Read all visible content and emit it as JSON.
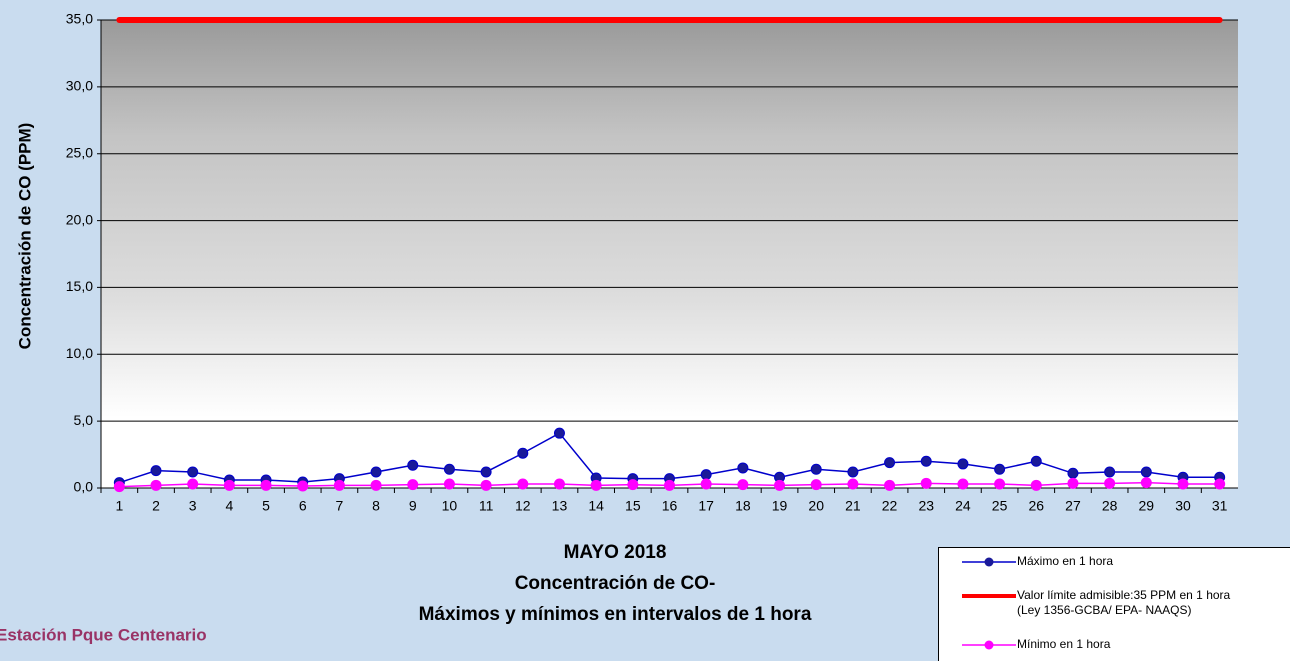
{
  "chart_data": {
    "type": "line",
    "title_lines": [
      "MAYO 2018",
      "Concentración de CO-",
      "Máximos y mínimos en intervalos de 1 hora"
    ],
    "y_label": "Concentración de CO (PPM)",
    "footer": "Estación Pque Centenario",
    "legend_note": "(Ley 1356-GCBA/ EPA- NAAQS)",
    "categories": [
      "1",
      "2",
      "3",
      "4",
      "5",
      "6",
      "7",
      "8",
      "9",
      "10",
      "11",
      "12",
      "13",
      "14",
      "15",
      "16",
      "17",
      "18",
      "19",
      "20",
      "21",
      "22",
      "23",
      "24",
      "25",
      "26",
      "27",
      "28",
      "29",
      "30",
      "31"
    ],
    "series": [
      {
        "name": "Máximo en 1 hora",
        "color": "#0000cc",
        "marker": true,
        "values": [
          0.4,
          1.3,
          1.2,
          0.6,
          0.6,
          0.45,
          0.7,
          1.2,
          1.7,
          1.4,
          1.2,
          2.6,
          4.1,
          0.75,
          0.7,
          0.7,
          1.0,
          1.5,
          0.8,
          1.4,
          1.2,
          1.9,
          2.0,
          1.8,
          1.4,
          2.0,
          1.1,
          1.2,
          1.2,
          0.8,
          0.8
        ]
      },
      {
        "name": "Valor límite admisible:35 PPM en 1 hora",
        "color": "#ff0000",
        "marker": false,
        "values": [
          35,
          35,
          35,
          35,
          35,
          35,
          35,
          35,
          35,
          35,
          35,
          35,
          35,
          35,
          35,
          35,
          35,
          35,
          35,
          35,
          35,
          35,
          35,
          35,
          35,
          35,
          35,
          35,
          35,
          35,
          35
        ]
      },
      {
        "name": "Mínimo en 1 hora",
        "color": "#ff00ff",
        "marker": true,
        "values": [
          0.1,
          0.2,
          0.3,
          0.2,
          0.2,
          0.15,
          0.2,
          0.2,
          0.25,
          0.3,
          0.2,
          0.3,
          0.3,
          0.2,
          0.25,
          0.2,
          0.3,
          0.25,
          0.2,
          0.25,
          0.3,
          0.2,
          0.35,
          0.3,
          0.3,
          0.2,
          0.35,
          0.35,
          0.4,
          0.3,
          0.3
        ]
      }
    ],
    "ylim": [
      0,
      35
    ],
    "yticks": [
      {
        "value": 0,
        "label": "0,0"
      },
      {
        "value": 5,
        "label": "5,0"
      },
      {
        "value": 10,
        "label": "10,0"
      },
      {
        "value": 15,
        "label": "15,0"
      },
      {
        "value": 20,
        "label": "20,0"
      },
      {
        "value": 25,
        "label": "25,0"
      },
      {
        "value": 30,
        "label": "30,0"
      },
      {
        "value": 35,
        "label": "35,0"
      }
    ],
    "grid": true
  }
}
